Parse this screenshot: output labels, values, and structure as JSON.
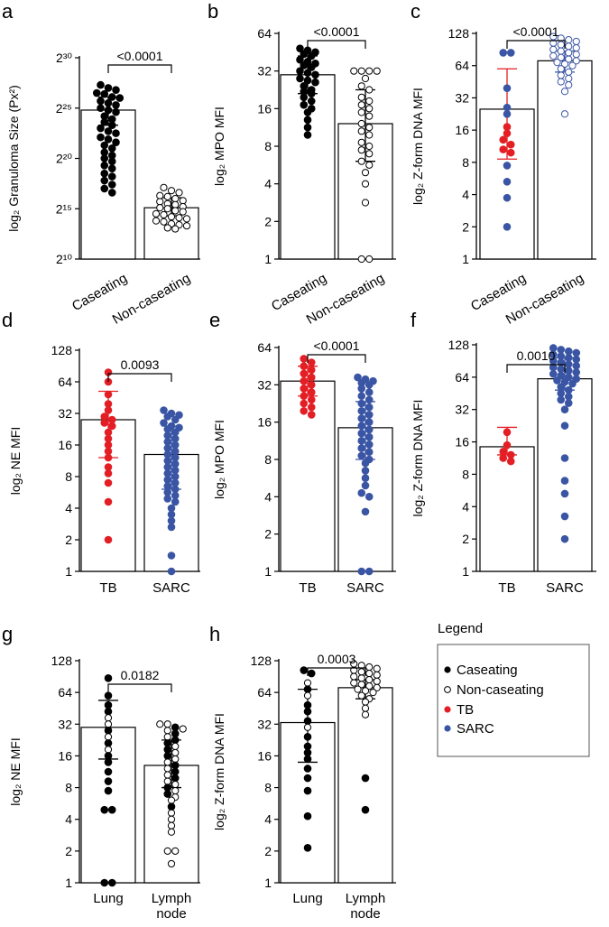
{
  "figure": {
    "legend": {
      "title": "Legend",
      "entries": [
        {
          "label": "Caseating",
          "marker": "filled",
          "color": "#000000"
        },
        {
          "label": "Non-caseating",
          "marker": "open",
          "color": "#000000"
        },
        {
          "label": "TB",
          "marker": "filled",
          "color": "#e31e24"
        },
        {
          "label": "SARC",
          "marker": "filled",
          "color": "#3a55a4"
        }
      ]
    }
  },
  "chart_data": [
    {
      "panel": "a",
      "type": "bar",
      "scale": "log2",
      "title": "",
      "ylabel": "log₂ Granuloma Size (Px²)",
      "yticks": [
        "2³⁰",
        "2²⁵",
        "2²⁰",
        "2¹⁵",
        "2¹⁰"
      ],
      "ylim_exp": [
        10,
        30
      ],
      "categories": [
        "Caseating",
        "Non-caseating"
      ],
      "p_value": "<0.0001",
      "series": [
        {
          "name": "Caseating",
          "mean_exp": 24.8,
          "err_exp": [
            23.3,
            26.1
          ],
          "color": "#000000",
          "filled": true,
          "values_exp": [
            27.3,
            27.0,
            26.8,
            26.5,
            26.4,
            26.1,
            26.0,
            25.7,
            25.5,
            25.3,
            25.0,
            24.8,
            24.6,
            24.2,
            23.9,
            23.6,
            23.3,
            23.0,
            22.7,
            22.5,
            22.1,
            21.9,
            21.6,
            21.3,
            21.0,
            20.6,
            20.3,
            20.0,
            19.7,
            19.3,
            19.0,
            18.5,
            18.2,
            17.8,
            17.4,
            17.0,
            16.6
          ]
        },
        {
          "name": "Non-caseating",
          "mean_exp": 15.1,
          "err_exp": [
            14.3,
            16.1
          ],
          "color": "#000000",
          "filled": false,
          "values_exp": [
            17.1,
            16.8,
            16.6,
            16.3,
            16.2,
            16.0,
            15.8,
            15.7,
            15.5,
            15.4,
            15.2,
            15.1,
            15.0,
            14.8,
            14.7,
            14.5,
            14.4,
            14.2,
            14.1,
            14.0,
            13.8,
            13.7,
            13.5,
            13.4,
            13.3,
            13.1,
            13.0
          ]
        }
      ]
    },
    {
      "panel": "b",
      "type": "bar",
      "scale": "log2",
      "title": "",
      "ylabel": "log₂ MPO MFI",
      "yticks": [
        "64",
        "32",
        "16",
        "8",
        "4",
        "2",
        "1"
      ],
      "ylim_exp": [
        0,
        6
      ],
      "categories": [
        "Caseating",
        "Non-caseating"
      ],
      "p_value": "<0.0001",
      "series": [
        {
          "name": "Caseating",
          "mean_exp": 4.9,
          "err_exp": [
            4.4,
            5.4
          ],
          "color": "#000000",
          "filled": true,
          "values_exp": [
            5.6,
            5.55,
            5.5,
            5.45,
            5.4,
            5.3,
            5.25,
            5.2,
            5.15,
            5.1,
            5.0,
            4.95,
            4.9,
            4.8,
            4.75,
            4.7,
            4.6,
            4.5,
            4.45,
            4.4,
            4.3,
            4.2,
            4.1,
            4.0,
            3.9,
            3.7,
            3.5,
            3.3
          ]
        },
        {
          "name": "Non-caseating",
          "mean_exp": 3.6,
          "err_exp": [
            2.6,
            4.5
          ],
          "color": "#000000",
          "filled": false,
          "values_exp": [
            5.0,
            5.0,
            5.0,
            5.0,
            4.8,
            4.6,
            4.5,
            4.3,
            4.2,
            4.1,
            4.0,
            3.9,
            3.8,
            3.6,
            3.5,
            3.4,
            3.3,
            3.1,
            3.0,
            2.9,
            2.8,
            2.6,
            2.5,
            2.3,
            2.0,
            1.5,
            0,
            0
          ]
        }
      ]
    },
    {
      "panel": "c",
      "type": "bar",
      "scale": "log2",
      "title": "",
      "ylabel": "log₂ Z-form DNA MFI",
      "yticks": [
        "128",
        "64",
        "32",
        "16",
        "8",
        "4",
        "2",
        "1"
      ],
      "ylim_exp": [
        0,
        7
      ],
      "categories": [
        "Caseating",
        "Non-caseating"
      ],
      "p_value": "<0.0001",
      "series": [
        {
          "name": "Caseating",
          "mean_exp": 4.65,
          "err_exp": [
            3.1,
            5.9
          ],
          "color": "#e31e24",
          "filled": true,
          "values_exp": [
            6.4,
            6.4,
            5.3,
            4.7,
            4.5,
            4.1,
            3.9,
            3.7,
            3.55,
            3.4,
            3.3,
            2.9,
            2.4,
            1.9,
            1.0
          ],
          "point_colors": [
            "#3a55a4",
            "#3a55a4",
            "#3a55a4",
            "#3a55a4",
            "#3a55a4",
            "#e31e24",
            "#e31e24",
            "#e31e24",
            "#e31e24",
            "#e31e24",
            "#e31e24",
            "#3a55a4",
            "#3a55a4",
            "#3a55a4",
            "#3a55a4"
          ]
        },
        {
          "name": "Non-caseating",
          "mean_exp": 6.15,
          "err_exp": [
            5.8,
            6.45
          ],
          "color": "#3a55a4",
          "filled": false,
          "values_exp": [
            6.9,
            6.85,
            6.8,
            6.75,
            6.7,
            6.65,
            6.6,
            6.55,
            6.5,
            6.45,
            6.4,
            6.35,
            6.3,
            6.25,
            6.2,
            6.15,
            6.1,
            6.05,
            6.0,
            5.9,
            5.8,
            5.7,
            5.6,
            5.5,
            5.4,
            5.2,
            4.5
          ]
        }
      ]
    },
    {
      "panel": "d",
      "type": "bar",
      "scale": "log2",
      "title": "",
      "ylabel": "log₂ NE MFI",
      "yticks": [
        "128",
        "64",
        "32",
        "16",
        "8",
        "4",
        "2",
        "1"
      ],
      "ylim_exp": [
        0,
        7
      ],
      "categories": [
        "TB",
        "SARC"
      ],
      "p_value": "0.0093",
      "series": [
        {
          "name": "TB",
          "mean_exp": 4.8,
          "err_exp": [
            3.6,
            5.7
          ],
          "color": "#e31e24",
          "filled": true,
          "values_exp": [
            6.3,
            6.0,
            5.6,
            5.3,
            5.1,
            4.9,
            4.8,
            4.7,
            4.6,
            4.4,
            4.2,
            4.0,
            3.8,
            3.6,
            3.3,
            3.1,
            2.8,
            2.2,
            1.0
          ]
        },
        {
          "name": "SARC",
          "mean_exp": 3.7,
          "err_exp": [
            2.6,
            4.6
          ],
          "color": "#3a55a4",
          "filled": true,
          "values_exp": [
            5.1,
            5.0,
            4.95,
            4.9,
            4.8,
            4.7,
            4.6,
            4.55,
            4.5,
            4.4,
            4.3,
            4.2,
            4.1,
            4.0,
            3.9,
            3.8,
            3.7,
            3.6,
            3.5,
            3.4,
            3.3,
            3.2,
            3.1,
            3.0,
            2.9,
            2.8,
            2.7,
            2.6,
            2.5,
            2.4,
            2.3,
            2.2,
            2.0,
            1.8,
            1.6,
            1.4,
            0.5,
            0
          ]
        }
      ]
    },
    {
      "panel": "e",
      "type": "bar",
      "scale": "log2",
      "title": "",
      "ylabel": "log₂ MPO MFI",
      "yticks": [
        "64",
        "32",
        "16",
        "8",
        "4",
        "2",
        "1"
      ],
      "ylim_exp": [
        0,
        6
      ],
      "categories": [
        "TB",
        "SARC"
      ],
      "p_value": "<0.0001",
      "series": [
        {
          "name": "TB",
          "mean_exp": 5.1,
          "err_exp": [
            4.7,
            5.5
          ],
          "color": "#e31e24",
          "filled": true,
          "values_exp": [
            5.7,
            5.6,
            5.5,
            5.4,
            5.3,
            5.2,
            5.1,
            5.0,
            4.9,
            4.8,
            4.7,
            4.6,
            4.5,
            4.4,
            4.3,
            4.2
          ]
        },
        {
          "name": "SARC",
          "mean_exp": 3.85,
          "err_exp": [
            3.0,
            4.55
          ],
          "color": "#3a55a4",
          "filled": true,
          "values_exp": [
            5.2,
            5.15,
            5.1,
            5.05,
            5.0,
            4.9,
            4.8,
            4.7,
            4.6,
            4.5,
            4.4,
            4.3,
            4.2,
            4.1,
            4.0,
            3.9,
            3.8,
            3.7,
            3.6,
            3.5,
            3.4,
            3.3,
            3.2,
            3.1,
            3.0,
            2.9,
            2.7,
            2.5,
            2.3,
            2.1,
            2.0,
            1.6,
            0,
            0
          ]
        }
      ]
    },
    {
      "panel": "f",
      "type": "bar",
      "scale": "log2",
      "title": "",
      "ylabel": "log₂ Z-form DNA MFI",
      "yticks": [
        "128",
        "64",
        "32",
        "16",
        "8",
        "4",
        "2",
        "1"
      ],
      "ylim_exp": [
        0,
        7
      ],
      "categories": [
        "TB",
        "SARC"
      ],
      "p_value": "0.0010",
      "series": [
        {
          "name": "TB",
          "mean_exp": 3.85,
          "err_exp": [
            3.6,
            4.45
          ],
          "color": "#e31e24",
          "filled": true,
          "values_exp": [
            4.3,
            3.9,
            3.7,
            3.6,
            3.5,
            3.4
          ]
        },
        {
          "name": "SARC",
          "mean_exp": 5.95,
          "err_exp": [
            5.6,
            6.6
          ],
          "color": "#3a55a4",
          "filled": true,
          "values_exp": [
            6.9,
            6.85,
            6.8,
            6.75,
            6.7,
            6.65,
            6.6,
            6.55,
            6.5,
            6.45,
            6.4,
            6.35,
            6.3,
            6.25,
            6.2,
            6.15,
            6.1,
            6.05,
            6.0,
            5.95,
            5.9,
            5.85,
            5.8,
            5.7,
            5.6,
            5.5,
            5.4,
            5.3,
            5.2,
            5.0,
            4.5,
            3.5,
            2.8,
            2.4,
            1.7,
            1.0
          ]
        }
      ]
    },
    {
      "panel": "g",
      "type": "bar",
      "scale": "log2",
      "title": "",
      "ylabel": "log₂ NE MFI",
      "yticks": [
        "128",
        "64",
        "32",
        "16",
        "8",
        "4",
        "2",
        "1"
      ],
      "ylim_exp": [
        0,
        7
      ],
      "categories": [
        "Lung",
        "Lymph node"
      ],
      "category_lines": [
        [
          "Lung"
        ],
        [
          "Lymph",
          "node"
        ]
      ],
      "p_value": "0.0182",
      "series": [
        {
          "name": "Lung",
          "mean_exp": 4.9,
          "err_exp": [
            3.9,
            5.75
          ],
          "color": "#000000",
          "filled": true,
          "values_exp": [
            6.45,
            5.9,
            5.6,
            5.4,
            5.2,
            5.0,
            4.8,
            4.6,
            4.4,
            4.2,
            4.0,
            3.8,
            3.5,
            3.2,
            2.9,
            2.3,
            2.3,
            0,
            0
          ],
          "point_open": [
            false,
            false,
            false,
            false,
            true,
            true,
            false,
            true,
            false,
            true,
            false,
            false,
            false,
            false,
            false,
            false,
            false,
            false,
            false
          ]
        },
        {
          "name": "Lymph node",
          "mean_exp": 3.7,
          "err_exp": [
            3.0,
            4.5
          ],
          "color": "#000000",
          "filled": false,
          "values_exp": [
            5.0,
            5.0,
            4.9,
            4.85,
            4.8,
            4.7,
            4.6,
            4.5,
            4.4,
            4.3,
            4.2,
            4.1,
            4.0,
            3.9,
            3.8,
            3.7,
            3.6,
            3.5,
            3.4,
            3.3,
            3.2,
            3.1,
            3.0,
            2.9,
            2.8,
            2.7,
            2.6,
            2.4,
            2.2,
            2.0,
            1.8,
            1.6,
            1.0,
            1.0,
            0.6
          ],
          "point_open": [
            true,
            true,
            false,
            true,
            true,
            false,
            true,
            false,
            false,
            true,
            false,
            true,
            false,
            true,
            true,
            false,
            true,
            false,
            true,
            false,
            true,
            true,
            false,
            true,
            false,
            true,
            true,
            false,
            true,
            true,
            true,
            true,
            true,
            true,
            true
          ]
        }
      ]
    },
    {
      "panel": "h",
      "type": "bar",
      "scale": "log2",
      "title": "",
      "ylabel": "log₂ Z-form DNA MFI",
      "yticks": [
        "128",
        "64",
        "32",
        "16",
        "8",
        "4",
        "2",
        "1"
      ],
      "ylim_exp": [
        0,
        7
      ],
      "categories": [
        "Lung",
        "Lymph node"
      ],
      "category_lines": [
        [
          "Lung"
        ],
        [
          "Lymph",
          "node"
        ]
      ],
      "p_value": "0.0003",
      "series": [
        {
          "name": "Lung",
          "mean_exp": 5.05,
          "err_exp": [
            3.8,
            6.1
          ],
          "color": "#000000",
          "filled": true,
          "values_exp": [
            6.7,
            6.6,
            6.3,
            6.1,
            5.9,
            5.6,
            5.4,
            5.1,
            4.9,
            4.6,
            4.3,
            4.1,
            3.9,
            3.6,
            3.3,
            2.9,
            2.1,
            1.1
          ],
          "point_open": [
            false,
            false,
            true,
            false,
            true,
            false,
            false,
            false,
            true,
            false,
            false,
            false,
            false,
            false,
            false,
            false,
            false,
            false
          ]
        },
        {
          "name": "Lymph node",
          "mean_exp": 6.15,
          "err_exp": [
            5.8,
            6.4
          ],
          "color": "#000000",
          "filled": false,
          "values_exp": [
            6.9,
            6.85,
            6.8,
            6.75,
            6.7,
            6.65,
            6.6,
            6.55,
            6.5,
            6.45,
            6.4,
            6.35,
            6.3,
            6.25,
            6.2,
            6.15,
            6.1,
            6.05,
            6.0,
            5.9,
            5.8,
            5.7,
            5.5,
            5.3,
            3.3,
            2.3
          ],
          "point_open": [
            true,
            true,
            true,
            true,
            true,
            true,
            true,
            true,
            true,
            true,
            true,
            true,
            true,
            true,
            true,
            true,
            true,
            true,
            true,
            true,
            true,
            true,
            true,
            true,
            false,
            false
          ]
        }
      ]
    }
  ]
}
